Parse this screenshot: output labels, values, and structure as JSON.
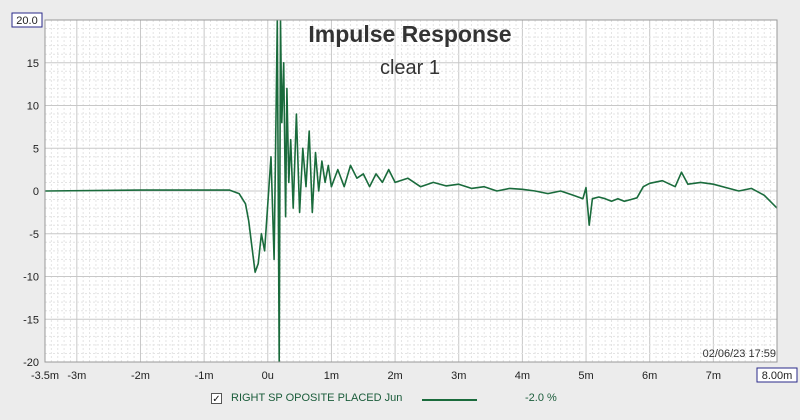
{
  "chart_data": {
    "type": "line",
    "title": "Impulse Response",
    "subtitle": "clear 1",
    "xlabel": "",
    "ylabel": "",
    "xlim": [
      -3.5,
      8.0
    ],
    "ylim": [
      -20,
      20
    ],
    "grid": true,
    "x_unit": "m",
    "x_ticks": [
      -3.5,
      -3,
      -2,
      -1,
      0,
      1,
      2,
      3,
      4,
      5,
      6,
      7,
      8
    ],
    "x_tick_labels": [
      "-3.5m",
      "-3m",
      "-2m",
      "-1m",
      "0u",
      "1m",
      "2m",
      "3m",
      "4m",
      "5m",
      "6m",
      "7m",
      "8.00m"
    ],
    "y_ticks": [
      20,
      15,
      10,
      5,
      0,
      -5,
      -10,
      -15,
      -20
    ],
    "y_tick_labels": [
      "20.0",
      "15",
      "10",
      "5",
      "0",
      "-5",
      "-10",
      "-15",
      "-20"
    ],
    "timestamp": "02/06/23 17:59",
    "series": [
      {
        "name": "RIGHT SP OPOSITE PLACED Jun",
        "color": "#1a6b3c",
        "x": [
          -3.5,
          -2.0,
          -0.6,
          -0.45,
          -0.35,
          -0.3,
          -0.25,
          -0.2,
          -0.15,
          -0.1,
          -0.05,
          0.0,
          0.05,
          0.1,
          0.15,
          0.18,
          0.2,
          0.22,
          0.25,
          0.28,
          0.3,
          0.33,
          0.36,
          0.4,
          0.45,
          0.5,
          0.55,
          0.6,
          0.65,
          0.7,
          0.75,
          0.8,
          0.85,
          0.9,
          0.95,
          1.0,
          1.1,
          1.2,
          1.3,
          1.4,
          1.5,
          1.6,
          1.7,
          1.8,
          1.9,
          2.0,
          2.2,
          2.4,
          2.6,
          2.8,
          3.0,
          3.2,
          3.4,
          3.6,
          3.8,
          4.0,
          4.2,
          4.4,
          4.6,
          4.8,
          4.95,
          5.0,
          5.05,
          5.1,
          5.2,
          5.3,
          5.4,
          5.5,
          5.6,
          5.7,
          5.8,
          5.9,
          6.0,
          6.2,
          6.4,
          6.5,
          6.6,
          6.8,
          7.0,
          7.2,
          7.4,
          7.6,
          7.8,
          8.0
        ],
        "y": [
          0,
          0.1,
          0.1,
          -0.3,
          -1.5,
          -3.5,
          -6.5,
          -9.5,
          -8.5,
          -5.0,
          -7.0,
          -1.5,
          4.0,
          -8.0,
          20.0,
          -20.0,
          20.0,
          8.0,
          15.0,
          -3.0,
          12.0,
          1.0,
          6.0,
          -2.0,
          9.0,
          -2.5,
          5.0,
          0.5,
          7.0,
          -2.5,
          4.5,
          0.0,
          3.5,
          1.0,
          3.0,
          0.5,
          2.5,
          0.5,
          3.0,
          1.5,
          2.0,
          0.5,
          2.0,
          1.0,
          2.5,
          1.0,
          1.5,
          0.5,
          1.0,
          0.6,
          0.8,
          0.3,
          0.5,
          0.0,
          0.3,
          0.2,
          0.0,
          -0.3,
          0.0,
          -0.5,
          -0.9,
          0.4,
          -4.0,
          -0.9,
          -0.7,
          -0.9,
          -1.2,
          -0.9,
          -1.2,
          -1.0,
          -0.8,
          0.5,
          0.9,
          1.2,
          0.5,
          2.2,
          0.8,
          1.0,
          0.8,
          0.4,
          0.0,
          0.3,
          -0.5,
          -2.0
        ]
      }
    ],
    "legend": {
      "placement": "bottom",
      "checked": true,
      "entry_label": "RIGHT SP OPOSITE PLACED Jun",
      "value_text": "-2.0 %"
    }
  }
}
